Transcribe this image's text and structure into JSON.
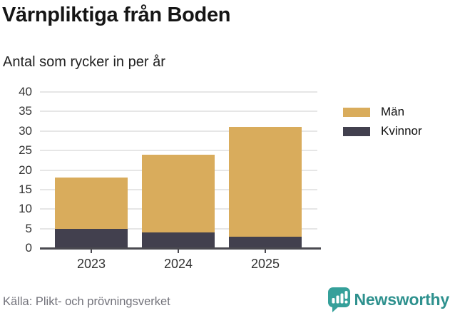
{
  "header": {
    "title": "Värnpliktiga från Boden",
    "subtitle": "Antal som rycker in per år"
  },
  "chart_data": {
    "type": "bar",
    "stacked": true,
    "categories": [
      "2023",
      "2024",
      "2025"
    ],
    "series": [
      {
        "name": "Män",
        "color": "#d9ac5c",
        "values": [
          13,
          20,
          28
        ]
      },
      {
        "name": "Kvinnor",
        "color": "#42404e",
        "values": [
          5,
          4,
          3
        ]
      }
    ],
    "stack_totals": [
      18,
      24,
      31
    ],
    "title": "Värnpliktiga från Boden",
    "subtitle": "Antal som rycker in per år",
    "xlabel": "",
    "ylabel": "",
    "ylim": [
      0,
      40
    ],
    "yticks": [
      0,
      5,
      10,
      15,
      20,
      25,
      30,
      35,
      40
    ],
    "grid": true,
    "legend_position": "right"
  },
  "colors": {
    "men": "#d9ac5c",
    "women": "#42404e",
    "axis": "#4a4950",
    "gridline": "#e6e6e6",
    "brand_teal": "#2e918e"
  },
  "footer": {
    "source": "Källa: Plikt- och prövningsverket",
    "brand": "Newsworthy",
    "brand_icon": "bar-chart-speech-bubble-icon"
  }
}
